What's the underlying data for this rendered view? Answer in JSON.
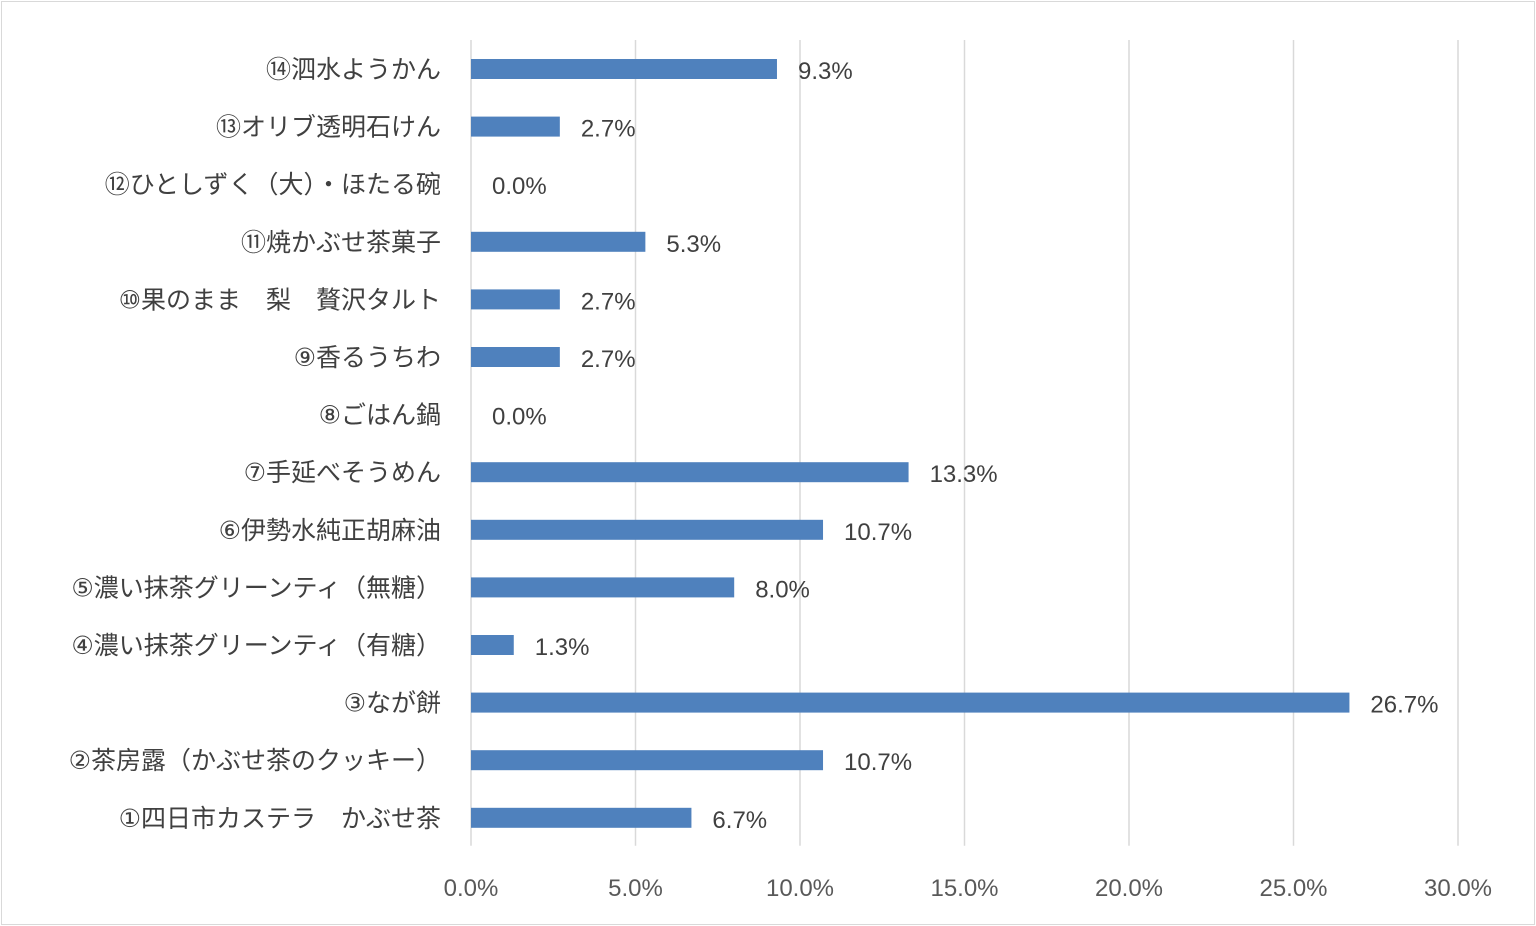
{
  "chart_data": {
    "type": "bar",
    "orientation": "horizontal",
    "categories": [
      "⑭泗水ようかん",
      "⑬オリブ透明石けん",
      "⑫ひとしずく（大）・ほたる碗",
      "⑪焼かぶせ茶菓子",
      "⑩果のまま　梨　贅沢タルト",
      "⑨香るうちわ",
      "⑧ごはん鍋",
      "⑦手延べそうめん",
      "⑥伊勢水純正胡麻油",
      "⑤濃い抹茶グリーンティ（無糖）",
      "④濃い抹茶グリーンティ（有糖）",
      "③なが餅",
      "②茶房露（かぶせ茶のクッキー）",
      "①四日市カステラ　かぶせ茶"
    ],
    "values": [
      9.3,
      2.7,
      0.0,
      5.3,
      2.7,
      2.7,
      0.0,
      13.3,
      10.7,
      8.0,
      1.3,
      26.7,
      10.7,
      6.7
    ],
    "value_labels": [
      "9.3%",
      "2.7%",
      "0.0%",
      "5.3%",
      "2.7%",
      "2.7%",
      "0.0%",
      "13.3%",
      "10.7%",
      "8.0%",
      "1.3%",
      "26.7%",
      "10.7%",
      "6.7%"
    ],
    "xticks": [
      0,
      5,
      10,
      15,
      20,
      25,
      30
    ],
    "xtick_labels": [
      "0.0%",
      "5.0%",
      "10.0%",
      "15.0%",
      "20.0%",
      "25.0%",
      "30.0%"
    ],
    "xlim": [
      0,
      30
    ],
    "title": "",
    "xlabel": "",
    "ylabel": "",
    "grid": "vertical",
    "legend": "none",
    "bar_color": "#4f81bd",
    "grid_color": "#d9d9d9",
    "text_color": "#404040"
  }
}
